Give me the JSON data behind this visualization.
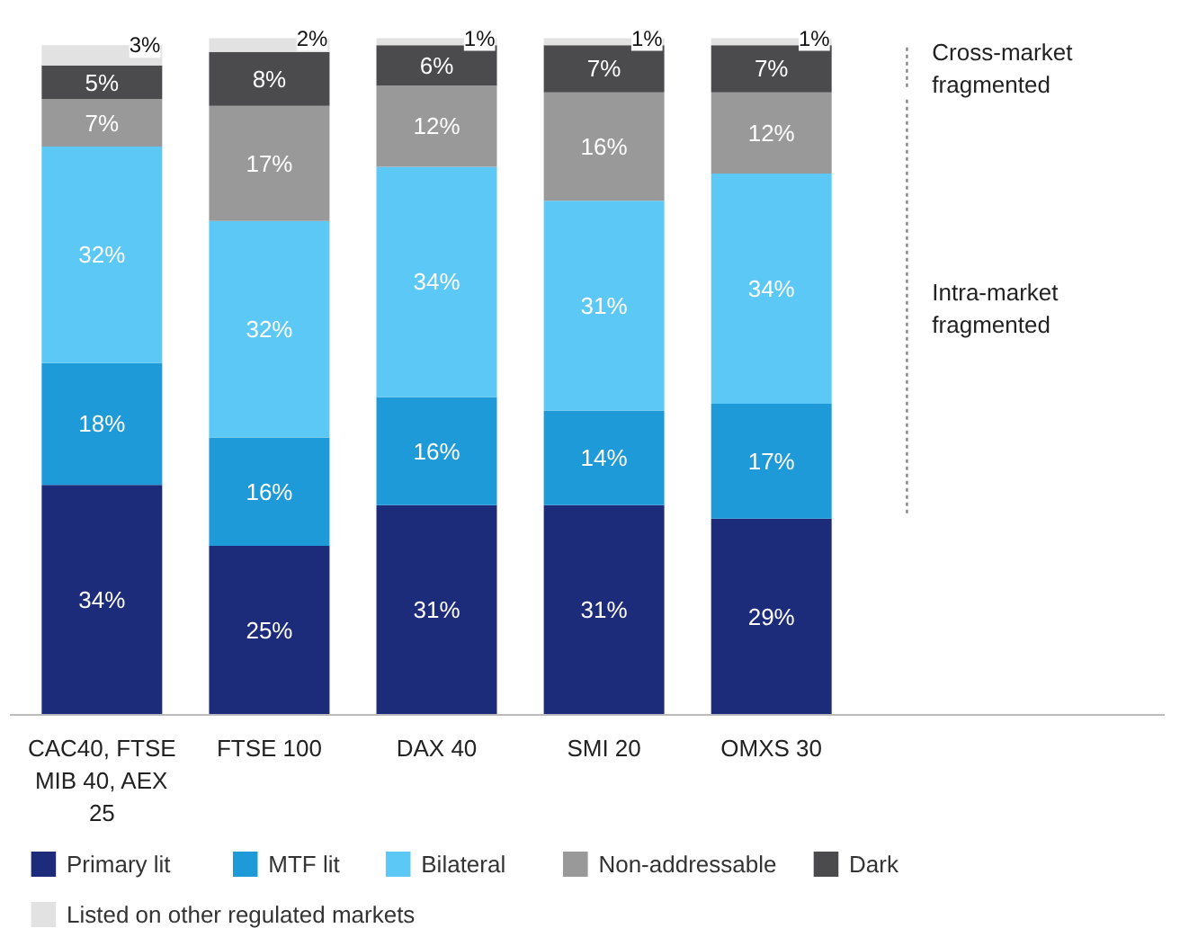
{
  "chart_data": {
    "type": "bar",
    "stacked": true,
    "legend": "bottom",
    "categories": [
      "CAC40, FTSE MIB 40, AEX 25",
      "FTSE 100",
      "DAX 40",
      "SMI 20",
      "OMXS 30"
    ],
    "series": [
      {
        "name": "Primary lit",
        "color": "#1c2b7a",
        "values": [
          34,
          25,
          31,
          31,
          29
        ],
        "value_labels": [
          "34%",
          "25%",
          "31%",
          "31%",
          "29%"
        ]
      },
      {
        "name": "MTF lit",
        "color": "#1f9ad8",
        "values": [
          18,
          16,
          16,
          14,
          17
        ],
        "value_labels": [
          "18%",
          "16%",
          "16%",
          "14%",
          "17%"
        ]
      },
      {
        "name": "Bilateral",
        "color": "#5cc8f5",
        "values": [
          32,
          32,
          34,
          31,
          34
        ],
        "value_labels": [
          "32%",
          "32%",
          "34%",
          "31%",
          "34%"
        ]
      },
      {
        "name": "Non-addressable",
        "color": "#999999",
        "values": [
          7,
          17,
          12,
          16,
          12
        ],
        "value_labels": [
          "7%",
          "17%",
          "12%",
          "16%",
          "12%"
        ]
      },
      {
        "name": "Dark",
        "color": "#4b4b4e",
        "values": [
          5,
          8,
          6,
          7,
          7
        ],
        "value_labels": [
          "5%",
          "8%",
          "6%",
          "7%",
          "7%"
        ]
      },
      {
        "name": "Listed on other regulated markets",
        "color": "#e2e2e2",
        "values": [
          3,
          2,
          1,
          1,
          1
        ],
        "value_labels": [
          "3%",
          "2%",
          "1%",
          "1%",
          "1%"
        ]
      }
    ],
    "annotations": [
      "Cross-market fragmented",
      "Intra-market fragmented"
    ]
  }
}
